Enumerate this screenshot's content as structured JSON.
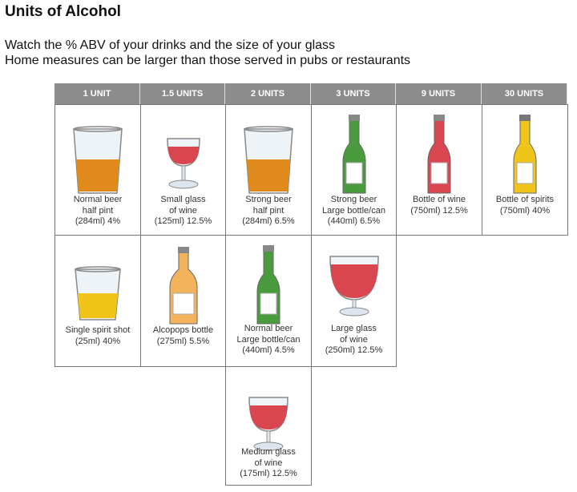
{
  "title": "Units of Alcohol",
  "subtitle_lines": [
    "Watch the % ABV of your drinks and the size of your glass",
    "Home measures can be larger than those served in pubs or restaurants"
  ],
  "colors": {
    "header": "#8c8c8c",
    "beer": "#e08a1c",
    "wine": "#d9464f",
    "green_bottle": "#4a9a3e",
    "spirit": "#f0c419",
    "alcopop": "#f2b35a"
  },
  "columns": [
    "1 UNIT",
    "1.5 UNITS",
    "2 UNITS",
    "3 UNITS",
    "9 UNITS",
    "30 UNITS"
  ],
  "rows": [
    [
      {
        "icon": "pint-glass-icon",
        "color": "beer",
        "label": [
          "Normal beer",
          "half pint",
          "(284ml) 4%"
        ]
      },
      {
        "icon": "wine-glass-small-icon",
        "color": "wine",
        "label": [
          "Small glass",
          "of wine",
          "(125ml) 12.5%"
        ]
      },
      {
        "icon": "pint-glass-icon",
        "color": "beer",
        "label": [
          "Strong beer",
          "half pint",
          "(284ml) 6.5%"
        ]
      },
      {
        "icon": "beer-bottle-icon",
        "color": "green_bottle",
        "label": [
          "Strong beer",
          "Large bottle/can",
          "(440ml) 6.5%"
        ]
      },
      {
        "icon": "wine-bottle-icon",
        "color": "wine",
        "label": [
          "Bottle of wine",
          "(750ml) 12.5%"
        ]
      },
      {
        "icon": "spirits-bottle-icon",
        "color": "spirit",
        "label": [
          "Bottle of spirits",
          "(750ml) 40%"
        ]
      }
    ],
    [
      {
        "icon": "shot-glass-icon",
        "color": "spirit",
        "label": [
          "Single spirit shot",
          "(25ml) 40%"
        ]
      },
      {
        "icon": "alcopop-bottle-icon",
        "color": "alcopop",
        "label": [
          "Alcopops bottle",
          "(275ml) 5.5%"
        ]
      },
      {
        "icon": "beer-bottle-icon",
        "color": "green_bottle",
        "label": [
          "Normal beer",
          "Large bottle/can",
          "(440ml) 4.5%"
        ]
      },
      {
        "icon": "wine-glass-large-icon",
        "color": "wine",
        "label": [
          "Large glass",
          "of wine",
          "(250ml) 12.5%"
        ]
      }
    ],
    [
      null,
      null,
      {
        "icon": "wine-glass-medium-icon",
        "color": "wine",
        "label": [
          "Medium glass",
          "of wine",
          "(175ml) 12.5%"
        ]
      }
    ]
  ]
}
